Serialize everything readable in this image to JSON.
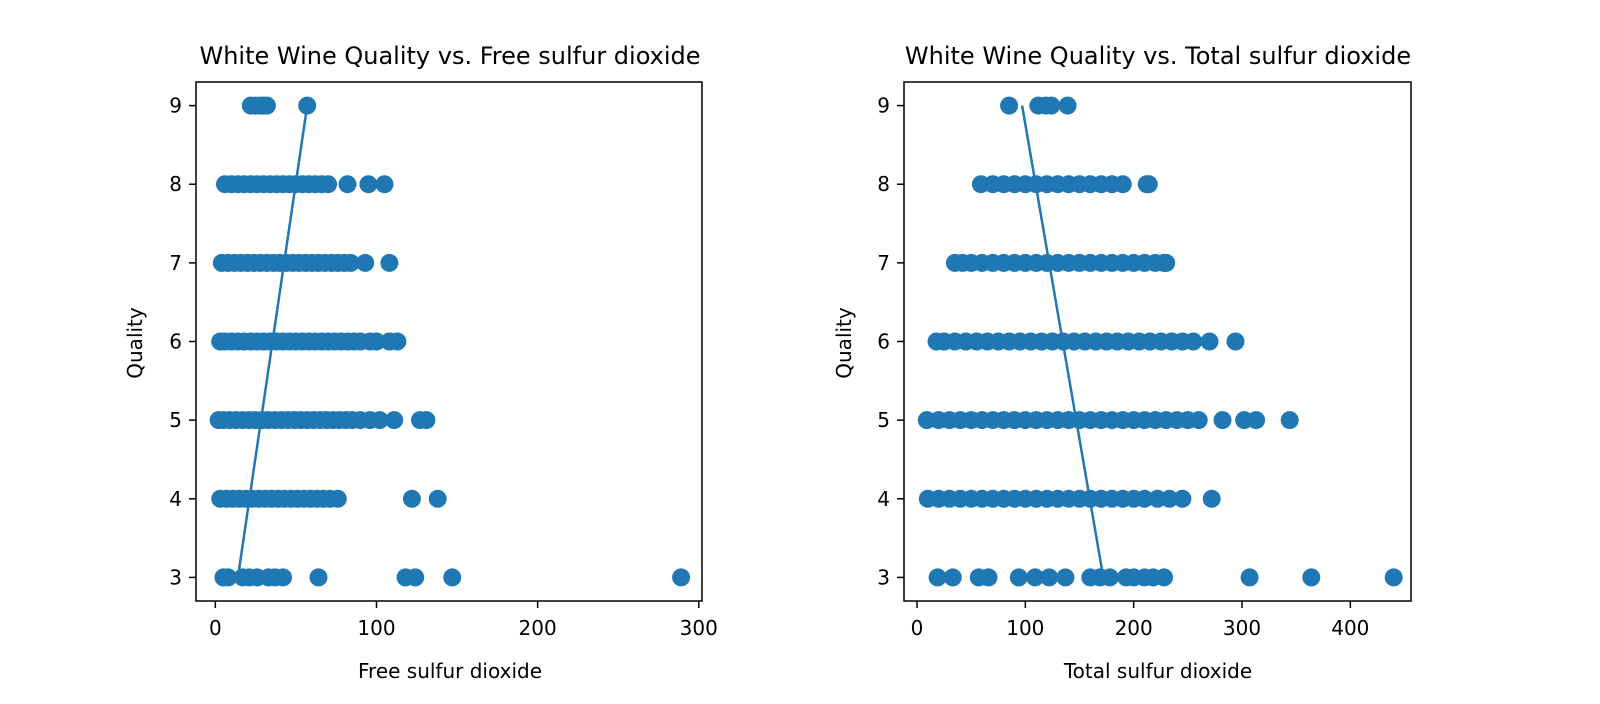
{
  "chart_data": [
    {
      "type": "scatter",
      "title": "White Wine Quality vs. Free sulfur dioxide",
      "xlabel": "Free sulfur dioxide",
      "ylabel": "Quality",
      "xlim": [
        -12,
        302
      ],
      "ylim": [
        2.7,
        9.3
      ],
      "xticks": [
        0,
        100,
        200,
        300
      ],
      "yticks": [
        3,
        4,
        5,
        6,
        7,
        8,
        9
      ],
      "grid": false,
      "color": "#1f77b4",
      "series": [
        {
          "points": [
            [
              22,
              9
            ],
            [
              25,
              9
            ],
            [
              28,
              9
            ],
            [
              30,
              9
            ],
            [
              32,
              9
            ],
            [
              57,
              9
            ],
            [
              6,
              8
            ],
            [
              10,
              8
            ],
            [
              14,
              8
            ],
            [
              18,
              8
            ],
            [
              22,
              8
            ],
            [
              26,
              8
            ],
            [
              30,
              8
            ],
            [
              34,
              8
            ],
            [
              38,
              8
            ],
            [
              42,
              8
            ],
            [
              46,
              8
            ],
            [
              50,
              8
            ],
            [
              54,
              8
            ],
            [
              58,
              8
            ],
            [
              62,
              8
            ],
            [
              66,
              8
            ],
            [
              70,
              8
            ],
            [
              82,
              8
            ],
            [
              95,
              8
            ],
            [
              105,
              8
            ],
            [
              4,
              7
            ],
            [
              8,
              7
            ],
            [
              12,
              7
            ],
            [
              16,
              7
            ],
            [
              20,
              7
            ],
            [
              24,
              7
            ],
            [
              28,
              7
            ],
            [
              32,
              7
            ],
            [
              36,
              7
            ],
            [
              40,
              7
            ],
            [
              44,
              7
            ],
            [
              48,
              7
            ],
            [
              52,
              7
            ],
            [
              56,
              7
            ],
            [
              60,
              7
            ],
            [
              64,
              7
            ],
            [
              68,
              7
            ],
            [
              72,
              7
            ],
            [
              76,
              7
            ],
            [
              80,
              7
            ],
            [
              84,
              7
            ],
            [
              93,
              7
            ],
            [
              108,
              7
            ],
            [
              3,
              6
            ],
            [
              6,
              6
            ],
            [
              10,
              6
            ],
            [
              14,
              6
            ],
            [
              18,
              6
            ],
            [
              22,
              6
            ],
            [
              26,
              6
            ],
            [
              30,
              6
            ],
            [
              34,
              6
            ],
            [
              38,
              6
            ],
            [
              42,
              6
            ],
            [
              46,
              6
            ],
            [
              50,
              6
            ],
            [
              54,
              6
            ],
            [
              58,
              6
            ],
            [
              62,
              6
            ],
            [
              66,
              6
            ],
            [
              70,
              6
            ],
            [
              74,
              6
            ],
            [
              78,
              6
            ],
            [
              82,
              6
            ],
            [
              86,
              6
            ],
            [
              90,
              6
            ],
            [
              96,
              6
            ],
            [
              100,
              6
            ],
            [
              108,
              6
            ],
            [
              113,
              6
            ],
            [
              2,
              5
            ],
            [
              5,
              5
            ],
            [
              9,
              5
            ],
            [
              13,
              5
            ],
            [
              17,
              5
            ],
            [
              21,
              5
            ],
            [
              25,
              5
            ],
            [
              29,
              5
            ],
            [
              33,
              5
            ],
            [
              37,
              5
            ],
            [
              41,
              5
            ],
            [
              45,
              5
            ],
            [
              49,
              5
            ],
            [
              53,
              5
            ],
            [
              57,
              5
            ],
            [
              61,
              5
            ],
            [
              65,
              5
            ],
            [
              69,
              5
            ],
            [
              73,
              5
            ],
            [
              77,
              5
            ],
            [
              81,
              5
            ],
            [
              85,
              5
            ],
            [
              90,
              5
            ],
            [
              96,
              5
            ],
            [
              102,
              5
            ],
            [
              111,
              5
            ],
            [
              127,
              5
            ],
            [
              131,
              5
            ],
            [
              3,
              4
            ],
            [
              7,
              4
            ],
            [
              11,
              4
            ],
            [
              15,
              4
            ],
            [
              19,
              4
            ],
            [
              23,
              4
            ],
            [
              27,
              4
            ],
            [
              31,
              4
            ],
            [
              35,
              4
            ],
            [
              39,
              4
            ],
            [
              43,
              4
            ],
            [
              47,
              4
            ],
            [
              51,
              4
            ],
            [
              55,
              4
            ],
            [
              59,
              4
            ],
            [
              63,
              4
            ],
            [
              67,
              4
            ],
            [
              71,
              4
            ],
            [
              76,
              4
            ],
            [
              122,
              4
            ],
            [
              138,
              4
            ],
            [
              5,
              3
            ],
            [
              8,
              3
            ],
            [
              17,
              3
            ],
            [
              21,
              3
            ],
            [
              26,
              3
            ],
            [
              33,
              3
            ],
            [
              37,
              3
            ],
            [
              42,
              3
            ],
            [
              64,
              3
            ],
            [
              118,
              3
            ],
            [
              124,
              3
            ],
            [
              147,
              3
            ],
            [
              289,
              3
            ]
          ]
        }
      ],
      "fit_line": {
        "x": [
          14,
          57
        ],
        "y": [
          3,
          9
        ]
      }
    },
    {
      "type": "scatter",
      "title": "White Wine Quality vs. Total sulfur dioxide",
      "xlabel": "Total sulfur dioxide",
      "ylabel": "Quality",
      "xlim": [
        -12,
        456
      ],
      "ylim": [
        2.7,
        9.3
      ],
      "xticks": [
        0,
        100,
        200,
        300,
        400
      ],
      "yticks": [
        3,
        4,
        5,
        6,
        7,
        8,
        9
      ],
      "grid": false,
      "color": "#1f77b4",
      "series": [
        {
          "points": [
            [
              85,
              9
            ],
            [
              112,
              9
            ],
            [
              119,
              9
            ],
            [
              124,
              9
            ],
            [
              139,
              9
            ],
            [
              59,
              8
            ],
            [
              70,
              8
            ],
            [
              80,
              8
            ],
            [
              90,
              8
            ],
            [
              100,
              8
            ],
            [
              110,
              8
            ],
            [
              120,
              8
            ],
            [
              130,
              8
            ],
            [
              140,
              8
            ],
            [
              150,
              8
            ],
            [
              160,
              8
            ],
            [
              170,
              8
            ],
            [
              180,
              8
            ],
            [
              190,
              8
            ],
            [
              212,
              8
            ],
            [
              214,
              8
            ],
            [
              35,
              7
            ],
            [
              42,
              7
            ],
            [
              50,
              7
            ],
            [
              60,
              7
            ],
            [
              70,
              7
            ],
            [
              80,
              7
            ],
            [
              90,
              7
            ],
            [
              100,
              7
            ],
            [
              110,
              7
            ],
            [
              120,
              7
            ],
            [
              130,
              7
            ],
            [
              140,
              7
            ],
            [
              150,
              7
            ],
            [
              160,
              7
            ],
            [
              170,
              7
            ],
            [
              180,
              7
            ],
            [
              190,
              7
            ],
            [
              200,
              7
            ],
            [
              210,
              7
            ],
            [
              220,
              7
            ],
            [
              228,
              7
            ],
            [
              230,
              7
            ],
            [
              18,
              6
            ],
            [
              25,
              6
            ],
            [
              35,
              6
            ],
            [
              45,
              6
            ],
            [
              55,
              6
            ],
            [
              65,
              6
            ],
            [
              75,
              6
            ],
            [
              85,
              6
            ],
            [
              95,
              6
            ],
            [
              105,
              6
            ],
            [
              115,
              6
            ],
            [
              125,
              6
            ],
            [
              135,
              6
            ],
            [
              145,
              6
            ],
            [
              155,
              6
            ],
            [
              165,
              6
            ],
            [
              175,
              6
            ],
            [
              185,
              6
            ],
            [
              195,
              6
            ],
            [
              205,
              6
            ],
            [
              215,
              6
            ],
            [
              225,
              6
            ],
            [
              235,
              6
            ],
            [
              245,
              6
            ],
            [
              255,
              6
            ],
            [
              270,
              6
            ],
            [
              294,
              6
            ],
            [
              9,
              5
            ],
            [
              20,
              5
            ],
            [
              30,
              5
            ],
            [
              40,
              5
            ],
            [
              50,
              5
            ],
            [
              60,
              5
            ],
            [
              70,
              5
            ],
            [
              80,
              5
            ],
            [
              90,
              5
            ],
            [
              100,
              5
            ],
            [
              110,
              5
            ],
            [
              120,
              5
            ],
            [
              130,
              5
            ],
            [
              140,
              5
            ],
            [
              150,
              5
            ],
            [
              160,
              5
            ],
            [
              170,
              5
            ],
            [
              180,
              5
            ],
            [
              190,
              5
            ],
            [
              200,
              5
            ],
            [
              210,
              5
            ],
            [
              220,
              5
            ],
            [
              230,
              5
            ],
            [
              240,
              5
            ],
            [
              250,
              5
            ],
            [
              260,
              5
            ],
            [
              282,
              5
            ],
            [
              302,
              5
            ],
            [
              313,
              5
            ],
            [
              344,
              5
            ],
            [
              10,
              4
            ],
            [
              20,
              4
            ],
            [
              30,
              4
            ],
            [
              40,
              4
            ],
            [
              50,
              4
            ],
            [
              60,
              4
            ],
            [
              70,
              4
            ],
            [
              80,
              4
            ],
            [
              90,
              4
            ],
            [
              100,
              4
            ],
            [
              110,
              4
            ],
            [
              120,
              4
            ],
            [
              130,
              4
            ],
            [
              140,
              4
            ],
            [
              150,
              4
            ],
            [
              160,
              4
            ],
            [
              170,
              4
            ],
            [
              180,
              4
            ],
            [
              190,
              4
            ],
            [
              200,
              4
            ],
            [
              210,
              4
            ],
            [
              222,
              4
            ],
            [
              233,
              4
            ],
            [
              245,
              4
            ],
            [
              272,
              4
            ],
            [
              19,
              3
            ],
            [
              33,
              3
            ],
            [
              57,
              3
            ],
            [
              66,
              3
            ],
            [
              94,
              3
            ],
            [
              109,
              3
            ],
            [
              122,
              3
            ],
            [
              137,
              3
            ],
            [
              160,
              3
            ],
            [
              169,
              3
            ],
            [
              178,
              3
            ],
            [
              193,
              3
            ],
            [
              200,
              3
            ],
            [
              210,
              3
            ],
            [
              218,
              3
            ],
            [
              228,
              3
            ],
            [
              307,
              3
            ],
            [
              364,
              3
            ],
            [
              440,
              3
            ]
          ]
        }
      ],
      "fit_line": {
        "x": [
          97,
          172
        ],
        "y": [
          9,
          3
        ]
      }
    }
  ]
}
